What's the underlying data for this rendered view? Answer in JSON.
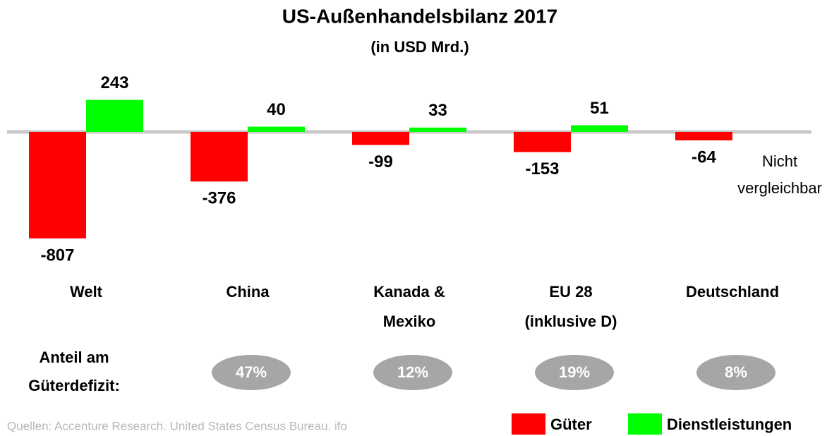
{
  "chart_data": {
    "type": "bar",
    "title": "US-Außenhandelsbilanz 2017",
    "subtitle": "(in USD Mrd.)",
    "categories": [
      [
        "Welt"
      ],
      [
        "China"
      ],
      [
        "Kanada &",
        "Mexiko"
      ],
      [
        "EU 28",
        "(inklusive D)"
      ],
      [
        "Deutschland"
      ]
    ],
    "series": [
      {
        "name": "Güter",
        "color": "#ff0000",
        "values": [
          -807,
          -376,
          -99,
          -153,
          -64
        ]
      },
      {
        "name": "Dienstleistungen",
        "color": "#00ff00",
        "values": [
          243,
          40,
          33,
          51,
          null
        ]
      }
    ],
    "annotation": [
      "Nicht",
      "vergleichbar"
    ],
    "share_label": [
      "Anteil am",
      "Güterdefizit:"
    ],
    "shares": {
      "values": [
        null,
        47,
        12,
        19,
        8
      ],
      "value_labels": [
        null,
        "47%",
        "12%",
        "19%",
        "8%"
      ]
    },
    "source": "Quellen: Accenture Research. United States Census Bureau. ifo"
  }
}
